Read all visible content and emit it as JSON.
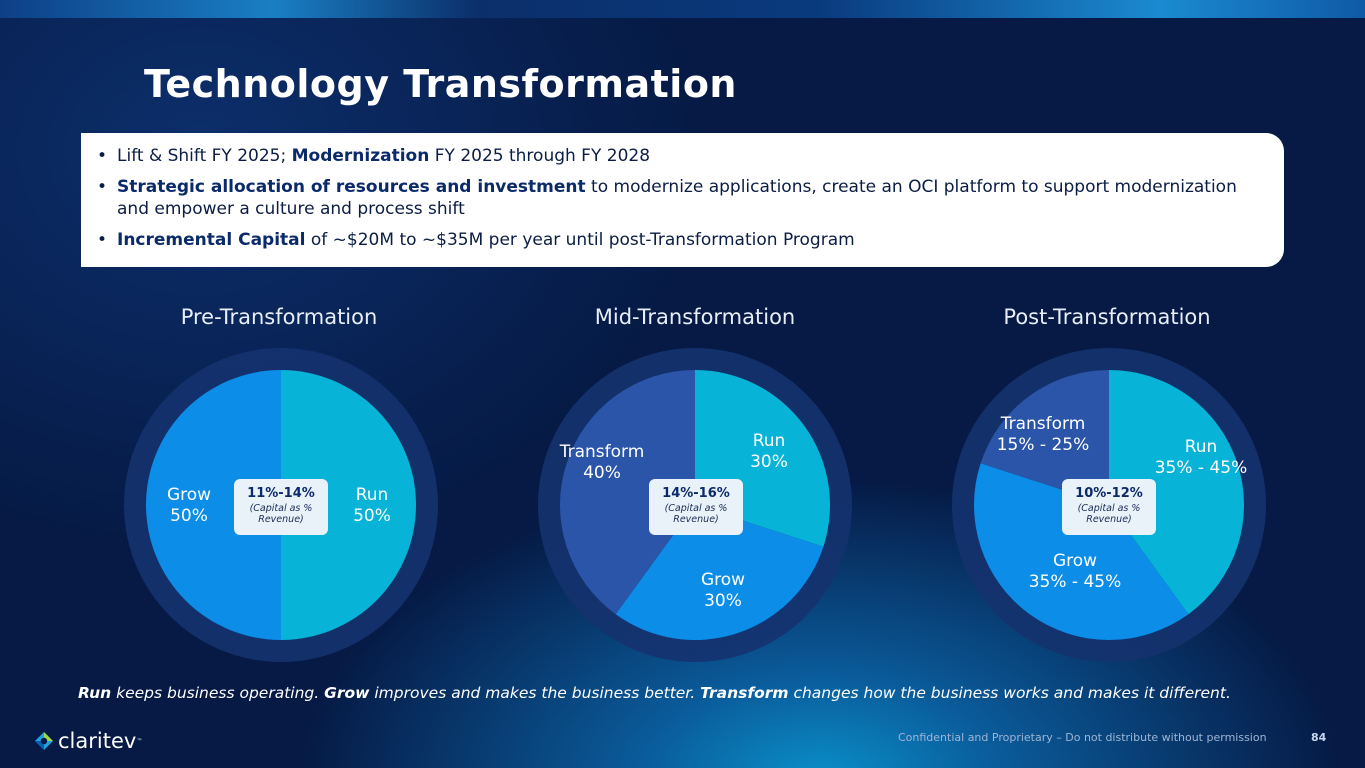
{
  "title": "Technology Transformation",
  "bullets": [
    {
      "pre": "Lift & Shift FY 2025; ",
      "bold": "Modernization",
      "post": " FY 2025 through FY 2028",
      "lead_bold": ""
    },
    {
      "lead_bold": "Strategic allocation of resources and investment",
      "post": " to modernize applications, create an OCI platform to support modernization and empower a culture and process shift"
    },
    {
      "lead_bold": "Incremental Capital",
      "post": " of ~$20M to ~$35M per year until post-Transformation Program"
    }
  ],
  "chart_data": [
    {
      "type": "pie",
      "title": "Pre-Transformation",
      "slices": [
        {
          "name": "Run",
          "label": "50%",
          "value": 50,
          "color": "#07b3d6"
        },
        {
          "name": "Grow",
          "label": "50%",
          "value": 50,
          "color": "#0b8de8"
        }
      ],
      "center_range": "11%-14%",
      "center_note": "(Capital as % Revenue)"
    },
    {
      "type": "pie",
      "title": "Mid-Transformation",
      "slices": [
        {
          "name": "Run",
          "label": "30%",
          "value": 30,
          "color": "#07b3d6"
        },
        {
          "name": "Grow",
          "label": "30%",
          "value": 30,
          "color": "#0b8de8"
        },
        {
          "name": "Transform",
          "label": "40%",
          "value": 40,
          "color": "#2b55a8"
        }
      ],
      "center_range": "14%-16%",
      "center_note": "(Capital as % Revenue)"
    },
    {
      "type": "pie",
      "title": "Post-Transformation",
      "slices": [
        {
          "name": "Run",
          "label": "35% - 45%",
          "value": 40,
          "color": "#07b3d6"
        },
        {
          "name": "Grow",
          "label": "35% - 45%",
          "value": 40,
          "color": "#0b8de8"
        },
        {
          "name": "Transform",
          "label": "15% - 25%",
          "value": 20,
          "color": "#2b55a8"
        }
      ],
      "center_range": "10%-12%",
      "center_note": "(Capital as % Revenue)"
    }
  ],
  "footer": {
    "run": "Run",
    "run_text": " keeps business operating. ",
    "grow": "Grow",
    "grow_text": " improves and makes the business better. ",
    "transform": "Transform",
    "transform_text": " changes how the business works and makes it different."
  },
  "brand": {
    "name": "claritev",
    "tm": "™"
  },
  "confidential": "Confidential and Proprietary – Do not distribute without permission",
  "page_number": "84"
}
